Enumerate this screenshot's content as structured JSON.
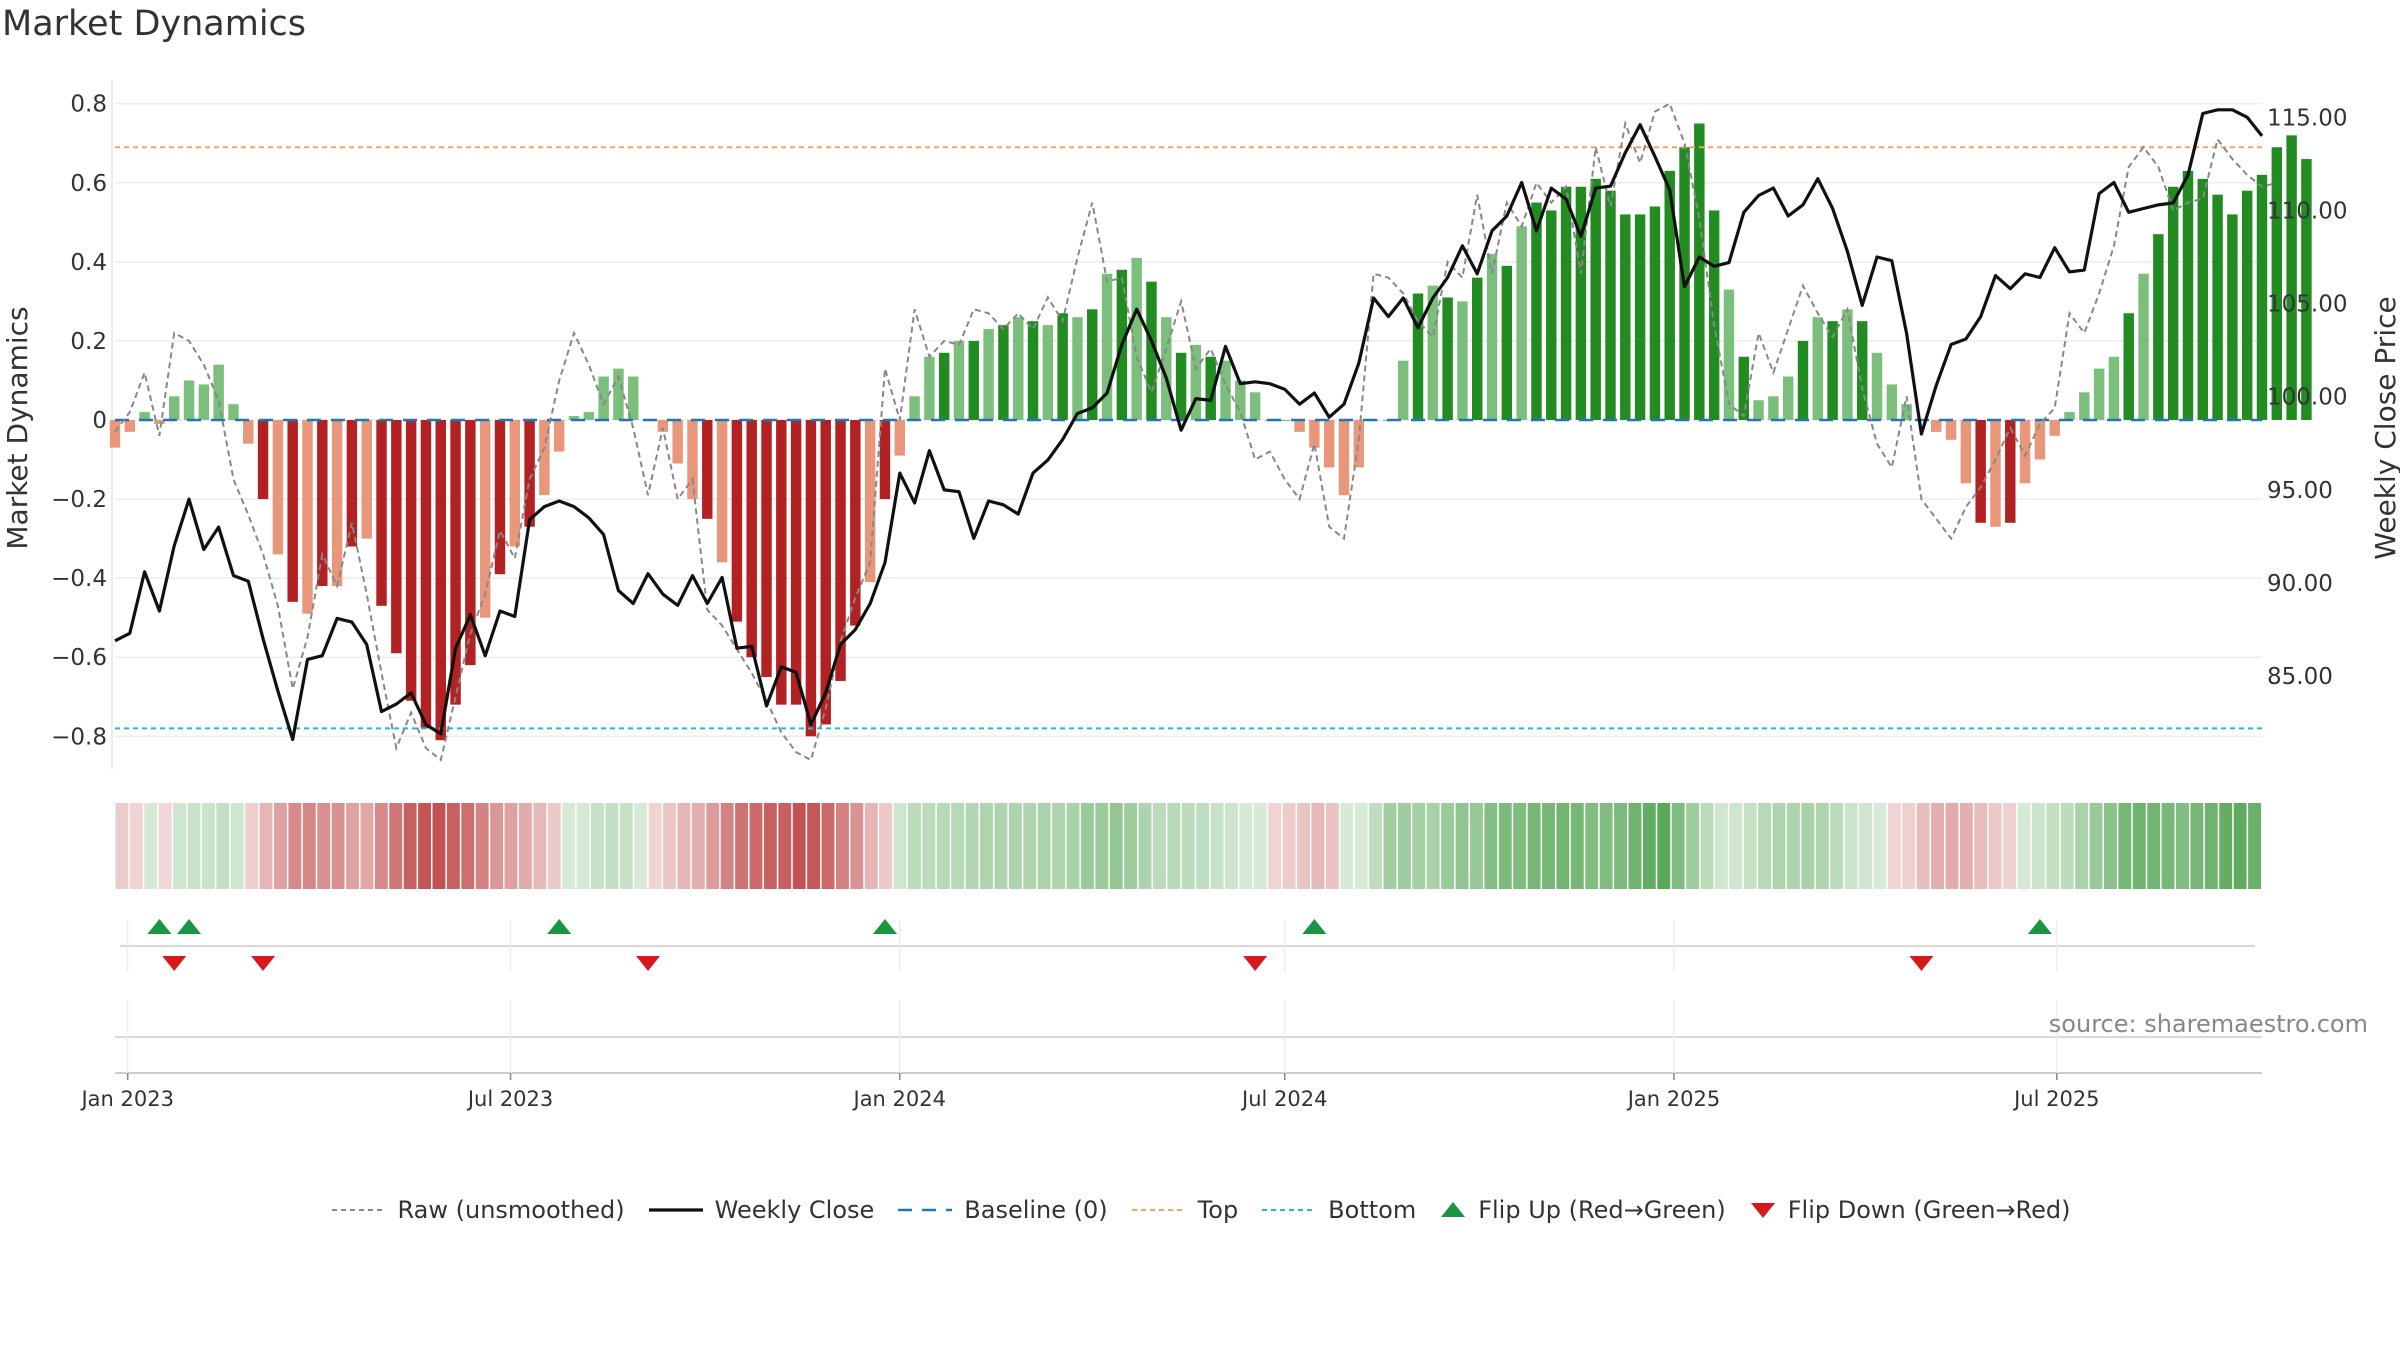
{
  "title": "Market Dynamics",
  "source_note": "source: sharemaestro.com",
  "colors": {
    "strong_green": "#228b22",
    "light_green": "#7cbf7c",
    "strong_red": "#b22222",
    "light_red": "#e8977a",
    "top_line": "#f4a460",
    "bottom_line": "#22bcd2",
    "baseline": "#1f77b4",
    "raw_line": "#888888",
    "close_line": "#111111",
    "flip_up": "#1a9641",
    "flip_down": "#d7191c"
  },
  "legend": [
    {
      "key": "raw",
      "label": "Raw (unsmoothed)"
    },
    {
      "key": "close",
      "label": "Weekly Close"
    },
    {
      "key": "baseline",
      "label": "Baseline (0)"
    },
    {
      "key": "top",
      "label": "Top"
    },
    {
      "key": "bottom",
      "label": "Bottom"
    },
    {
      "key": "flipup",
      "label": "Flip Up (Red→Green)"
    },
    {
      "key": "flipdown",
      "label": "Flip Down (Green→Red)"
    }
  ],
  "chart_data": {
    "type": "bar",
    "ylabel": "Market Dynamics",
    "y2label": "Weekly Close Price",
    "ylim": [
      -0.86,
      0.86
    ],
    "y2lim": [
      80.5,
      117.0
    ],
    "yticks": [
      0.8,
      0.6,
      0.4,
      0.2,
      0,
      -0.2,
      -0.4,
      -0.6,
      -0.8
    ],
    "ytick_labels": [
      "0.8",
      "0.6",
      "0.4",
      "0.2",
      "0",
      "−0.2",
      "−0.4",
      "−0.6",
      "−0.8"
    ],
    "y2ticks": [
      115,
      110,
      105,
      100,
      95,
      90,
      85
    ],
    "y2tick_labels": [
      "115.00",
      "110.00",
      "105.00",
      "100.00",
      "95.00",
      "90.00",
      "85.00"
    ],
    "x_start": "2022-12-26",
    "x_end": "2025-10-06",
    "xticks": [
      "2023-01-01",
      "2023-07-01",
      "2024-01-01",
      "2024-07-01",
      "2025-01-01",
      "2025-07-01"
    ],
    "xtick_labels": [
      "Jan 2023",
      "Jul 2023",
      "Jan 2024",
      "Jul 2024",
      "Jan 2025",
      "Jul 2025"
    ],
    "top_level": 0.69,
    "bottom_level": -0.78,
    "grid": true,
    "legend_position": "bottom-center",
    "series": [
      {
        "name": "Market Dynamics",
        "values": [
          -0.07,
          -0.03,
          0.02,
          -0.01,
          0.06,
          0.1,
          0.09,
          0.14,
          0.04,
          -0.06,
          -0.2,
          -0.34,
          -0.46,
          -0.49,
          -0.42,
          -0.42,
          -0.32,
          -0.3,
          -0.47,
          -0.59,
          -0.71,
          -0.78,
          -0.81,
          -0.72,
          -0.62,
          -0.5,
          -0.39,
          -0.32,
          -0.27,
          -0.19,
          -0.08,
          0.01,
          0.02,
          0.11,
          0.13,
          0.11,
          0.0,
          -0.03,
          -0.11,
          -0.2,
          -0.25,
          -0.36,
          -0.51,
          -0.6,
          -0.65,
          -0.72,
          -0.72,
          -0.8,
          -0.77,
          -0.66,
          -0.52,
          -0.41,
          -0.2,
          -0.09,
          0.06,
          0.16,
          0.17,
          0.2,
          0.2,
          0.23,
          0.24,
          0.26,
          0.25,
          0.24,
          0.27,
          0.26,
          0.28,
          0.37,
          0.38,
          0.41,
          0.35,
          0.26,
          0.17,
          0.19,
          0.16,
          0.15,
          0.1,
          0.07,
          0.0,
          0.0,
          -0.03,
          -0.07,
          -0.12,
          -0.19,
          -0.12,
          0.0,
          0.0,
          0.15,
          0.32,
          0.34,
          0.31,
          0.3,
          0.36,
          0.42,
          0.39,
          0.49,
          0.55,
          0.53,
          0.59,
          0.59,
          0.61,
          0.58,
          0.52,
          0.52,
          0.54,
          0.63,
          0.69,
          0.75,
          0.53,
          0.33,
          0.16,
          0.05,
          0.06,
          0.11,
          0.2,
          0.26,
          0.25,
          0.28,
          0.25,
          0.17,
          0.09,
          0.04,
          0.0,
          -0.03,
          -0.05,
          -0.16,
          -0.26,
          -0.27,
          -0.26,
          -0.16,
          -0.1,
          -0.04,
          0.02,
          0.07,
          0.13,
          0.16,
          0.27,
          0.37,
          0.47,
          0.59,
          0.63,
          0.61,
          0.57,
          0.52,
          0.58,
          0.62,
          0.69,
          0.72,
          0.66
        ]
      },
      {
        "name": "Raw (unsmoothed)",
        "values": [
          -0.03,
          0.02,
          0.12,
          -0.04,
          0.22,
          0.2,
          0.14,
          0.05,
          -0.15,
          -0.24,
          -0.34,
          -0.47,
          -0.68,
          -0.55,
          -0.34,
          -0.42,
          -0.26,
          -0.44,
          -0.64,
          -0.83,
          -0.74,
          -0.83,
          -0.86,
          -0.7,
          -0.54,
          -0.44,
          -0.28,
          -0.35,
          -0.15,
          -0.07,
          0.1,
          0.22,
          0.14,
          0.04,
          0.11,
          -0.02,
          -0.19,
          -0.02,
          -0.2,
          -0.15,
          -0.48,
          -0.52,
          -0.58,
          -0.64,
          -0.71,
          -0.79,
          -0.84,
          -0.86,
          -0.73,
          -0.56,
          -0.45,
          -0.36,
          0.13,
          0.0,
          0.28,
          0.16,
          0.2,
          0.19,
          0.28,
          0.27,
          0.23,
          0.27,
          0.23,
          0.31,
          0.25,
          0.41,
          0.55,
          0.35,
          0.36,
          0.16,
          0.07,
          0.18,
          0.3,
          0.13,
          0.18,
          0.09,
          0.02,
          -0.1,
          -0.08,
          -0.15,
          -0.2,
          -0.06,
          -0.27,
          -0.3,
          -0.05,
          0.37,
          0.36,
          0.32,
          0.25,
          0.21,
          0.4,
          0.36,
          0.57,
          0.37,
          0.55,
          0.49,
          0.6,
          0.55,
          0.59,
          0.37,
          0.69,
          0.54,
          0.75,
          0.65,
          0.78,
          0.8,
          0.7,
          0.51,
          0.24,
          0.04,
          0.01,
          0.22,
          0.12,
          0.23,
          0.34,
          0.27,
          0.21,
          0.28,
          0.08,
          -0.06,
          -0.12,
          0.06,
          -0.2,
          -0.25,
          -0.3,
          -0.22,
          -0.17,
          -0.1,
          -0.02,
          -0.09,
          -0.01,
          0.03,
          0.27,
          0.22,
          0.32,
          0.44,
          0.64,
          0.69,
          0.64,
          0.53,
          0.55,
          0.56,
          0.71,
          0.66,
          0.62,
          0.59,
          0.6
        ]
      },
      {
        "name": "Weekly Close",
        "values": [
          86.9,
          87.3,
          90.6,
          88.5,
          92.0,
          94.5,
          91.8,
          93.0,
          90.4,
          90.1,
          87.0,
          84.2,
          81.6,
          85.9,
          86.1,
          88.1,
          87.9,
          86.7,
          83.1,
          83.5,
          84.1,
          82.4,
          81.9,
          86.5,
          88.3,
          86.1,
          88.5,
          88.2,
          93.4,
          94.1,
          94.4,
          94.1,
          93.5,
          92.6,
          89.6,
          88.9,
          90.5,
          89.4,
          88.8,
          90.4,
          88.9,
          90.3,
          86.5,
          86.6,
          83.4,
          85.5,
          85.2,
          82.4,
          84.1,
          86.7,
          87.5,
          88.9,
          91.1,
          95.9,
          94.3,
          97.1,
          95.0,
          94.9,
          92.4,
          94.4,
          94.2,
          93.7,
          95.9,
          96.6,
          97.7,
          99.1,
          99.4,
          100.2,
          102.8,
          104.7,
          103.0,
          101.0,
          98.2,
          99.9,
          99.8,
          102.7,
          100.7,
          100.8,
          100.7,
          100.4,
          99.6,
          100.2,
          98.9,
          99.6,
          101.8,
          105.3,
          104.3,
          105.3,
          103.7,
          105.3,
          106.4,
          108.1,
          106.6,
          108.9,
          109.7,
          111.5,
          108.9,
          111.2,
          110.6,
          108.6,
          111.2,
          111.3,
          113.1,
          114.6,
          112.9,
          111.1,
          105.9,
          107.5,
          107.0,
          107.2,
          109.9,
          110.8,
          111.2,
          109.7,
          110.3,
          111.7,
          110.1,
          107.8,
          104.9,
          107.5,
          107.3,
          103.4,
          98.0,
          100.6,
          102.8,
          103.1,
          104.3,
          106.5,
          105.8,
          106.6,
          106.4,
          108.0,
          106.7,
          106.8,
          110.9,
          111.5,
          109.9,
          110.1,
          110.3,
          110.4,
          111.9,
          115.2,
          115.4,
          115.4,
          115.0,
          114.0
        ]
      }
    ],
    "flip_up_dates": [
      "2023-01-16",
      "2023-01-30",
      "2023-07-24",
      "2023-12-25",
      "2024-07-15",
      "2025-06-23"
    ],
    "flip_down_dates": [
      "2023-01-23",
      "2023-03-06",
      "2023-09-04",
      "2024-06-17",
      "2025-04-28"
    ]
  }
}
